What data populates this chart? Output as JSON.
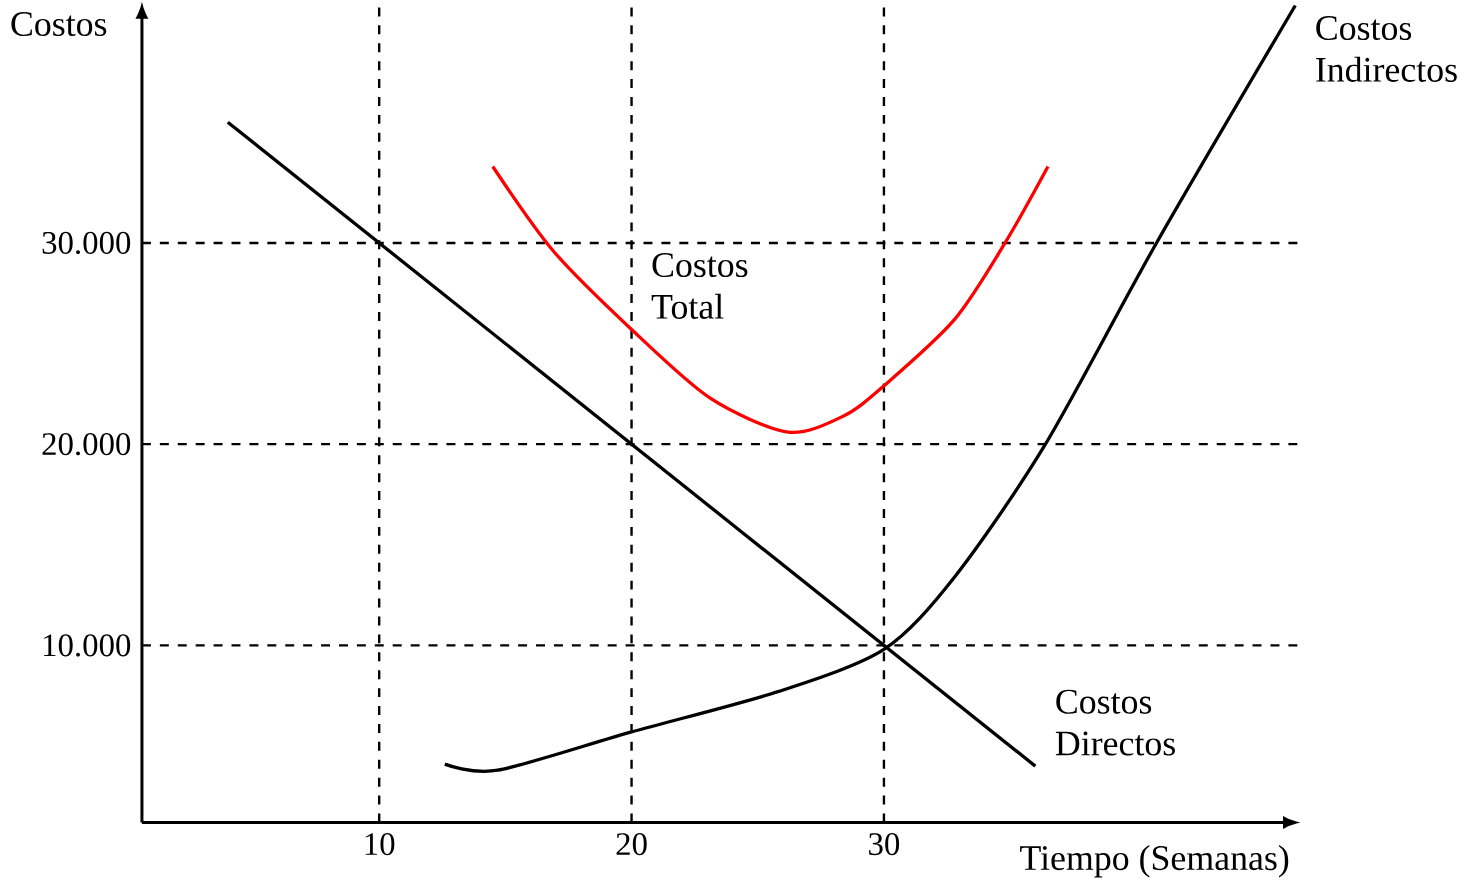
{
  "chart_data": {
    "type": "line",
    "xlabel": "Tiempo (Semanas)",
    "ylabel": "Costos",
    "xlim": [
      0.6,
      46.5
    ],
    "ylim": [
      1200,
      42000
    ],
    "xticks": [
      10,
      20,
      30
    ],
    "yticks": [
      {
        "value": 10000,
        "label": "10.000"
      },
      {
        "value": 20000,
        "label": "20.000"
      },
      {
        "value": 30000,
        "label": "30.000"
      }
    ],
    "grid": true,
    "legend": false,
    "marker": "none",
    "line_style": "solid",
    "series": [
      {
        "name": "Costos Directos",
        "color": "#000000",
        "x": [
          4,
          36
        ],
        "values": [
          36000,
          4000
        ]
      },
      {
        "name": "Costos Total",
        "color": "#ff0000",
        "x": [
          14.5,
          16.9,
          20,
          23.1,
          26.2,
          28.4,
          30,
          32.8,
          34.8,
          36.5
        ],
        "values": [
          33800,
          29600,
          25700,
          22300,
          20600,
          21400,
          22900,
          26200,
          30000,
          33800
        ]
      },
      {
        "name": "Costos Indirectos",
        "color": "#000000",
        "x": [
          12.6,
          14.7,
          20,
          25.8,
          30,
          32.8,
          36.4,
          40.8,
          46.3
        ],
        "values": [
          4100,
          3800,
          5700,
          7700,
          9800,
          13400,
          20000,
          30000,
          41800
        ]
      }
    ]
  }
}
